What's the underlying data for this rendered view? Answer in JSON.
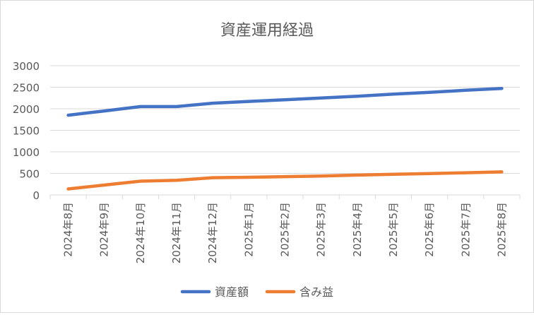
{
  "chart_data": {
    "type": "line",
    "title": "資産運用経過",
    "xlabel": "",
    "ylabel": "",
    "categories": [
      "2024年8月",
      "2024年9月",
      "2024年10月",
      "2024年11月",
      "2024年12月",
      "2025年1月",
      "2025年2月",
      "2025年3月",
      "2025年4月",
      "2025年5月",
      "2025年6月",
      "2025年7月",
      "2025年8月"
    ],
    "series": [
      {
        "name": "資産額",
        "color": "#4472c4",
        "values": [
          1850,
          1950,
          2050,
          2050,
          2130,
          2170,
          2210,
          2250,
          2290,
          2340,
          2380,
          2430,
          2470
        ]
      },
      {
        "name": "含み益",
        "color": "#ed7d31",
        "values": [
          140,
          230,
          320,
          340,
          400,
          410,
          425,
          440,
          460,
          480,
          495,
          515,
          535
        ]
      }
    ],
    "ylim": [
      0,
      3000
    ],
    "yticks": [
      0,
      500,
      1000,
      1500,
      2000,
      2500,
      3000
    ],
    "grid": true,
    "legend_position": "bottom"
  }
}
